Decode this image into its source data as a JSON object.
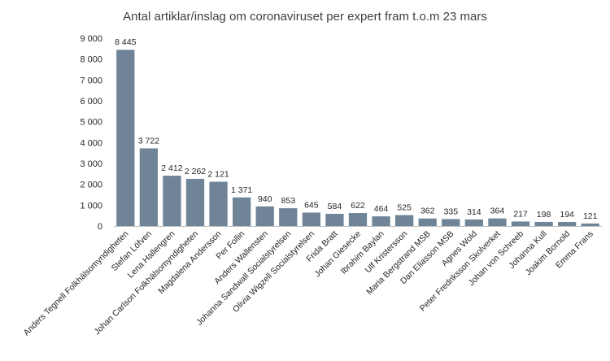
{
  "chart_data": {
    "type": "bar",
    "title": "Antal artiklar/inslag om coronaviruset per expert fram t.o.m 23 mars",
    "xlabel": "",
    "ylabel": "",
    "ylim": [
      0,
      9000
    ],
    "yticks": [
      0,
      1000,
      2000,
      3000,
      4000,
      5000,
      6000,
      7000,
      8000,
      9000
    ],
    "ytick_labels": [
      "0",
      "1 000",
      "2 000",
      "3 000",
      "4 000",
      "5 000",
      "6 000",
      "7 000",
      "8 000",
      "9 000"
    ],
    "grid": false,
    "legend": "none",
    "bar_color": "#6f8597",
    "categories": [
      "Anders Tegnell Folkhälsomyndigheten",
      "Stefan Löfven",
      "Lena Hallengren",
      "Johan Carlson Folkhälsomyndigheten",
      "Magdalena Andersson",
      "Per Follin",
      "Anders Wallensten",
      "Johanna Sandwall Socialstyrelsen",
      "Olivia Wigzell Socialstyrelsen",
      "Frida Bratt",
      "Johan Giesecke",
      "Ibrahim Baylan",
      "Ulf Kristersson",
      "Maria Bergstrand MSB",
      "Dan Eliasson MSB",
      "Agnes Wold",
      "Peter Fredriksson Skolverket",
      "Johan von Schreeb",
      "Johanna Kull",
      "Joakim Bornold",
      "Emma Frans"
    ],
    "values": [
      8445,
      3722,
      2412,
      2262,
      2121,
      1371,
      940,
      853,
      645,
      584,
      622,
      464,
      525,
      362,
      335,
      314,
      364,
      217,
      198,
      194,
      121
    ],
    "value_labels": [
      "8 445",
      "3 722",
      "2 412",
      "2 262",
      "2 121",
      "1 371",
      "940",
      "853",
      "645",
      "584",
      "622",
      "464",
      "525",
      "362",
      "335",
      "314",
      "364",
      "217",
      "198",
      "194",
      "121"
    ]
  }
}
